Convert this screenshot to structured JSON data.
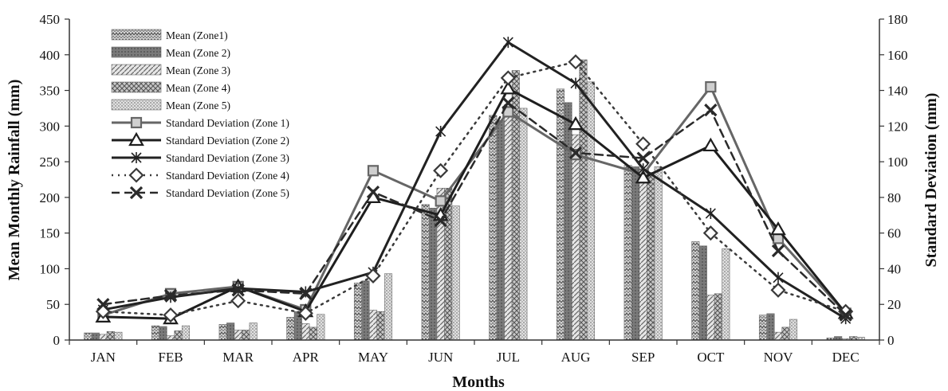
{
  "chart_data": {
    "type": "bar",
    "xlabel": "Months",
    "ylabel": "Mean Monthly Rainfall (mm)",
    "y2label": "Standard Deviation (mm)",
    "categories": [
      "JAN",
      "FEB",
      "MAR",
      "APR",
      "MAY",
      "JUN",
      "JUL",
      "AUG",
      "SEP",
      "OCT",
      "NOV",
      "DEC"
    ],
    "ylim": [
      0,
      450
    ],
    "y2lim": [
      0,
      180
    ],
    "yticks": [
      0,
      50,
      100,
      150,
      200,
      250,
      300,
      350,
      400,
      450
    ],
    "y2ticks": [
      0,
      20,
      40,
      60,
      80,
      100,
      120,
      140,
      160,
      180
    ],
    "grid": false,
    "legend_position": "top-left",
    "bar_series": [
      {
        "name": "Mean (Zone1)",
        "values": [
          10,
          20,
          22,
          32,
          80,
          190,
          315,
          352,
          245,
          138,
          35,
          3
        ],
        "pattern": "p-zigzag"
      },
      {
        "name": "Mean (Zone 2)",
        "values": [
          10,
          19,
          24,
          40,
          83,
          185,
          308,
          333,
          243,
          132,
          37,
          5
        ],
        "pattern": "p-dark"
      },
      {
        "name": "Mean (Zone 3)",
        "values": [
          8,
          6,
          14,
          23,
          42,
          213,
          330,
          288,
          228,
          63,
          11,
          2
        ],
        "pattern": "p-diag"
      },
      {
        "name": "Mean (Zone 4)",
        "values": [
          12,
          13,
          14,
          18,
          40,
          213,
          378,
          393,
          235,
          65,
          18,
          5
        ],
        "pattern": "p-cross"
      },
      {
        "name": "Mean (Zone 5)",
        "values": [
          11,
          20,
          24,
          36,
          93,
          188,
          325,
          362,
          243,
          128,
          29,
          4
        ],
        "pattern": "p-dots"
      }
    ],
    "line_series": [
      {
        "name": "Standard Deviation (Zone 1)",
        "values": [
          14,
          26,
          30,
          17,
          95,
          78,
          128,
          104,
          93,
          142,
          57,
          15
        ],
        "color": "#666666",
        "width": 3,
        "dash": "",
        "marker": "square"
      },
      {
        "name": "Standard Deviation (Zone 2)",
        "values": [
          13,
          12,
          30,
          16,
          80,
          70,
          141,
          121,
          91,
          109,
          62,
          15
        ],
        "color": "#1e1e1e",
        "width": 3,
        "dash": "",
        "marker": "triangle"
      },
      {
        "name": "Standard Deviation (Zone 3)",
        "values": [
          17,
          24,
          29,
          27,
          38,
          117,
          167,
          144,
          96,
          71,
          35,
          12
        ],
        "color": "#222222",
        "width": 3,
        "dash": "",
        "marker": "star"
      },
      {
        "name": "Standard Deviation (Zone 4)",
        "values": [
          16,
          14,
          22,
          15,
          36,
          95,
          147,
          156,
          110,
          60,
          28,
          16
        ],
        "color": "#3a3a3a",
        "width": 2.5,
        "dash": "2,6",
        "marker": "diamond"
      },
      {
        "name": "Standard Deviation (Zone 5)",
        "values": [
          20,
          25,
          28,
          26,
          83,
          67,
          133,
          105,
          102,
          129,
          50,
          14
        ],
        "color": "#2a2a2a",
        "width": 2.5,
        "dash": "10,6",
        "marker": "x"
      }
    ]
  }
}
